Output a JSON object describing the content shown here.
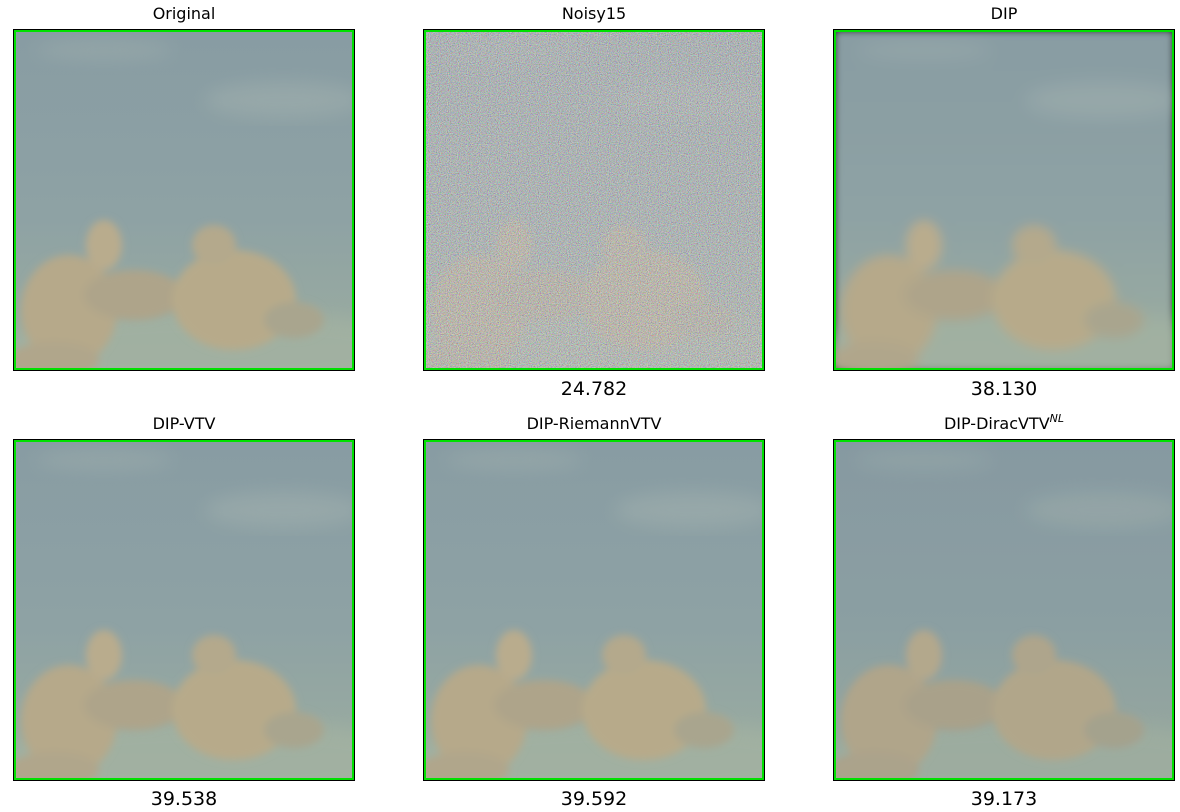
{
  "panels": [
    {
      "title": "Original",
      "psnr": ""
    },
    {
      "title": "Noisy15",
      "psnr": "24.782"
    },
    {
      "title": "DIP",
      "psnr": "38.130"
    },
    {
      "title": "DIP-VTV",
      "psnr": "39.538"
    },
    {
      "title": "DIP-RiemannVTV",
      "psnr": "39.592"
    },
    {
      "title_main": "DIP-DiracVTV",
      "title_sup": "NL",
      "psnr": "39.173"
    }
  ],
  "colors": {
    "frame": "#00e000",
    "sky_top": "#8a9da3",
    "sky_bottom": "#98aa9e",
    "cloud": "#b8ab8c",
    "noise_tint": "#9aa0a0"
  }
}
